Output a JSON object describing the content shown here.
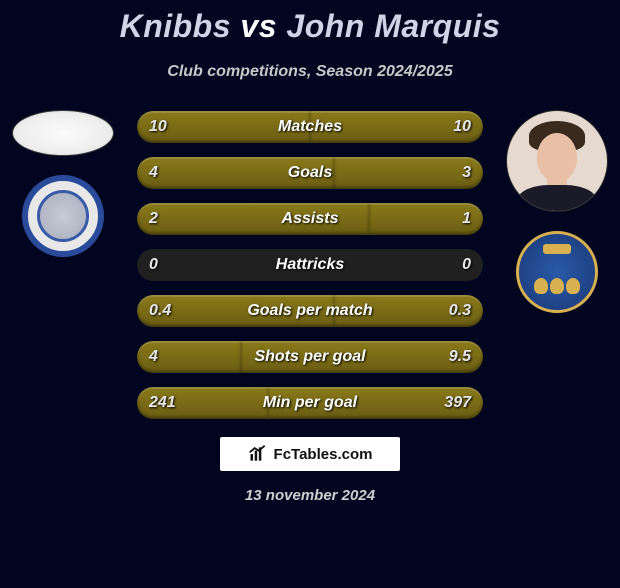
{
  "title": {
    "player1": "Knibbs",
    "vs": "vs",
    "player2": "John Marquis"
  },
  "subtitle": "Club competitions, Season 2024/2025",
  "branding_text": "FcTables.com",
  "date": "13 november 2024",
  "colors": {
    "page_bg": "#010520",
    "bar_bg": "#202020",
    "bar_fill": "#7a6a16",
    "text_light": "#e6e6e6",
    "text_heading": "#cfd4e6"
  },
  "rows": [
    {
      "label": "Matches",
      "left_val": "10",
      "right_val": "10",
      "left_pct": 50,
      "right_pct": 50
    },
    {
      "label": "Goals",
      "left_val": "4",
      "right_val": "3",
      "left_pct": 57,
      "right_pct": 43
    },
    {
      "label": "Assists",
      "left_val": "2",
      "right_val": "1",
      "left_pct": 67,
      "right_pct": 33
    },
    {
      "label": "Hattricks",
      "left_val": "0",
      "right_val": "0",
      "left_pct": 0,
      "right_pct": 0
    },
    {
      "label": "Goals per match",
      "left_val": "0.4",
      "right_val": "0.3",
      "left_pct": 57,
      "right_pct": 43
    },
    {
      "label": "Shots per goal",
      "left_val": "4",
      "right_val": "9.5",
      "left_pct": 30,
      "right_pct": 70
    },
    {
      "label": "Min per goal",
      "left_val": "241",
      "right_val": "397",
      "left_pct": 38,
      "right_pct": 62
    }
  ]
}
